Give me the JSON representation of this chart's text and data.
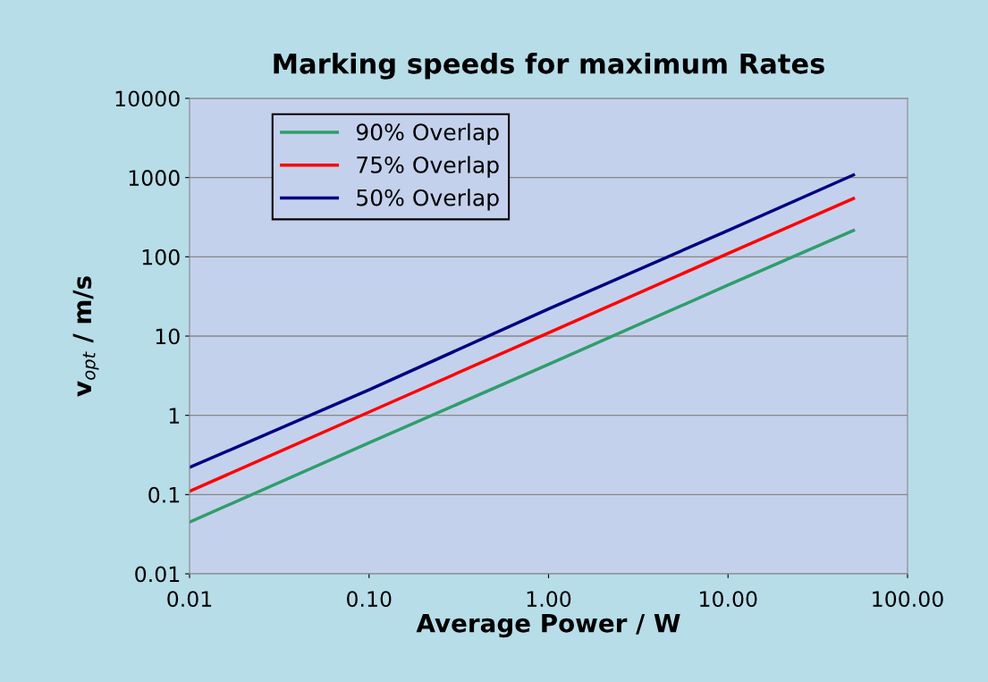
{
  "chart_data": {
    "type": "line",
    "title": "Marking speeds for maximum Rates",
    "xlabel": "Average Power / W",
    "ylabel": "v$_{opt}$ / m/s",
    "x": [
      0.01,
      0.1,
      1,
      10,
      50
    ],
    "series": [
      {
        "name": "90% Overlap",
        "color": "#2e9e6b",
        "values": [
          0.045,
          0.45,
          4.4,
          44,
          215
        ]
      },
      {
        "name": "75% Overlap",
        "color": "#ff0000",
        "values": [
          0.11,
          1.1,
          11,
          110,
          545
        ]
      },
      {
        "name": "50% Overlap",
        "color": "#000080",
        "values": [
          0.22,
          2.1,
          22,
          215,
          1080
        ]
      }
    ],
    "log": "xy",
    "xlim": [
      0.01,
      100
    ],
    "ylim": [
      0.01,
      10000
    ],
    "xticks": [
      0.01,
      {
        "value": 0.1,
        "label": "0.10"
      },
      {
        "value": 1,
        "label": "1.00"
      },
      {
        "value": 10,
        "label": "10.00"
      },
      {
        "value": 100,
        "label": "100.00"
      }
    ],
    "yticks": [
      0.01,
      0.1,
      1,
      10,
      100,
      1000,
      10000
    ],
    "grid": "y",
    "legend": "top left",
    "marker": "none",
    "line_style": "solid"
  }
}
